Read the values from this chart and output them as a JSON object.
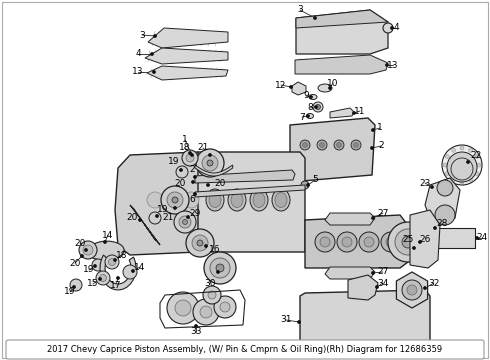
{
  "title": "2017 Chevy Caprice Piston Assembly, (W/ Pin & Cmprn & Oil Ring)(Rh) Diagram for 12686359",
  "background_color": "#ffffff",
  "border_color": "#aaaaaa",
  "text_color": "#000000",
  "figsize": [
    4.9,
    3.6
  ],
  "dpi": 100,
  "caption": "2017 Chevy Caprice Piston Assembly, (W/ Pin & Cmprn & Oil Ring)(Rh) Diagram for 12686359",
  "caption_fontsize": 6.0
}
